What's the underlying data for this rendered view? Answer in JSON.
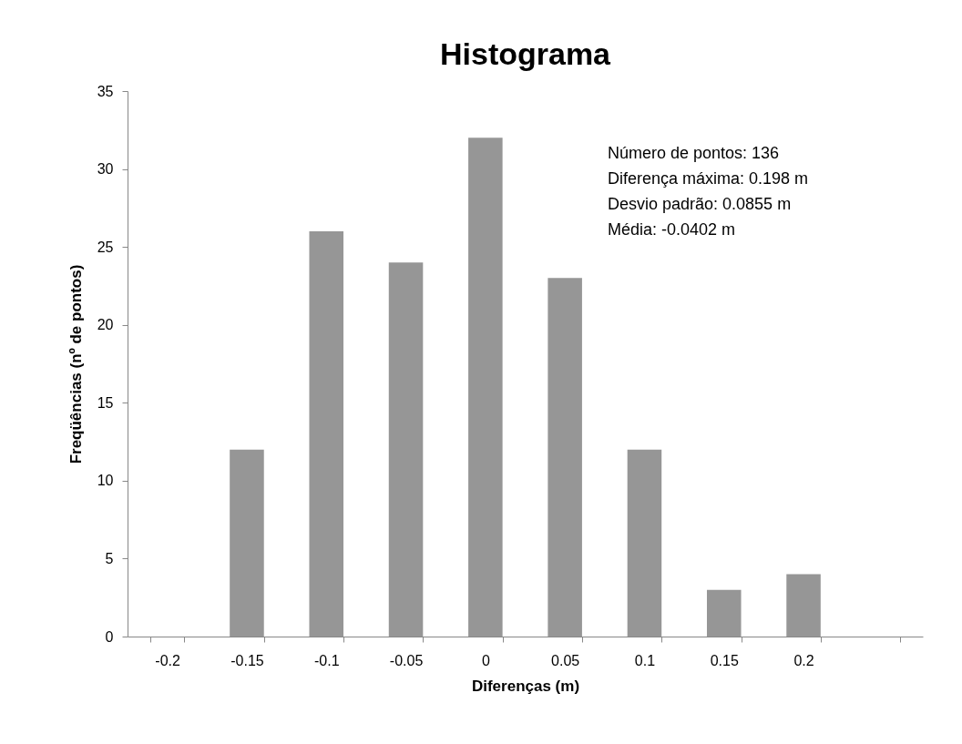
{
  "chart_data": {
    "type": "bar",
    "title": "Histograma",
    "xlabel": "Diferenças (m)",
    "ylabel": "Freqüências (nº de pontos)",
    "categories": [
      "-0.2",
      "-0.15",
      "-0.1",
      "-0.05",
      "0",
      "0.05",
      "0.1",
      "0.15",
      "0.2",
      null
    ],
    "values": [
      0,
      12,
      26,
      24,
      32,
      23,
      12,
      3,
      4,
      0
    ],
    "color": "#969696",
    "ylim": [
      0,
      35
    ],
    "yticks": [
      0,
      5,
      10,
      15,
      20,
      25,
      30,
      35
    ],
    "grid": false,
    "annotations": [
      "Número de pontos: 136",
      "Diferença máxima: 0.198 m",
      "Desvio padrão: 0.0855 m",
      "Média: -0.0402 m"
    ]
  }
}
